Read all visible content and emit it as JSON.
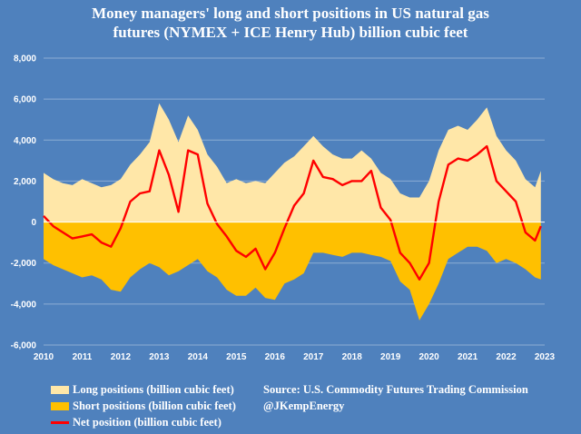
{
  "title_line1": "Money managers' long and short positions in US natural gas",
  "title_line2": "futures (NYMEX + ICE Henry Hub) billion cubic feet",
  "source_line1": "Source: U.S. Commodity Futures Trading Commission",
  "source_line2": "@JKempEnergy",
  "colors": {
    "background": "#4f81bd",
    "long": "#ffe7a8",
    "short": "#ffc000",
    "net": "#ff0000",
    "grid": "#ffffff"
  },
  "chart_data": {
    "type": "area",
    "title": "Money managers' long and short positions in US natural gas futures (NYMEX + ICE Henry Hub) billion cubic feet",
    "xlim": [
      2010,
      2023
    ],
    "ylim": [
      -6000,
      8000
    ],
    "yticks": [
      8000,
      6000,
      4000,
      2000,
      0,
      -2000,
      -4000,
      -6000
    ],
    "ytick_labels": [
      "8,000",
      "6,000",
      "4,000",
      "2,000",
      "0",
      "-2,000",
      "-4,000",
      "-6,000"
    ],
    "xtick_labels": [
      "2010",
      "2011",
      "2012",
      "2013",
      "2014",
      "2015",
      "2016",
      "2017",
      "2018",
      "2019",
      "2020",
      "2021",
      "2022",
      "2023"
    ],
    "legend_position": "bottom-left",
    "x": [
      2010.0,
      2010.25,
      2010.5,
      2010.75,
      2011.0,
      2011.25,
      2011.5,
      2011.75,
      2012.0,
      2012.25,
      2012.5,
      2012.75,
      2013.0,
      2013.25,
      2013.5,
      2013.75,
      2014.0,
      2014.25,
      2014.5,
      2014.75,
      2015.0,
      2015.25,
      2015.5,
      2015.75,
      2016.0,
      2016.25,
      2016.5,
      2016.75,
      2017.0,
      2017.25,
      2017.5,
      2017.75,
      2018.0,
      2018.25,
      2018.5,
      2018.75,
      2019.0,
      2019.25,
      2019.5,
      2019.75,
      2020.0,
      2020.25,
      2020.5,
      2020.75,
      2021.0,
      2021.25,
      2021.5,
      2021.75,
      2022.0,
      2022.25,
      2022.5,
      2022.75,
      2022.9
    ],
    "series": [
      {
        "name": "Long positions (billion cubic feet)",
        "values": [
          2400,
          2100,
          1900,
          1800,
          2100,
          1900,
          1700,
          1800,
          2100,
          2800,
          3300,
          3900,
          5800,
          5000,
          3900,
          5200,
          4500,
          3300,
          2700,
          1900,
          2100,
          1900,
          2000,
          1900,
          2400,
          2900,
          3200,
          3700,
          4200,
          3700,
          3300,
          3100,
          3100,
          3500,
          3100,
          2400,
          2100,
          1400,
          1200,
          1200,
          2000,
          3500,
          4500,
          4700,
          4500,
          5000,
          5600,
          4200,
          3500,
          3000,
          2100,
          1700,
          2500
        ]
      },
      {
        "name": "Short positions (billion cubic feet)",
        "values": [
          -1800,
          -2100,
          -2300,
          -2500,
          -2700,
          -2600,
          -2800,
          -3300,
          -3400,
          -2700,
          -2300,
          -2000,
          -2200,
          -2600,
          -2400,
          -2100,
          -1800,
          -2400,
          -2700,
          -3300,
          -3600,
          -3600,
          -3200,
          -3700,
          -3800,
          -3000,
          -2800,
          -2500,
          -1500,
          -1500,
          -1600,
          -1700,
          -1500,
          -1500,
          -1600,
          -1700,
          -1900,
          -2900,
          -3300,
          -4800,
          -4000,
          -3000,
          -1800,
          -1500,
          -1200,
          -1200,
          -1400,
          -2000,
          -1800,
          -2000,
          -2300,
          -2700,
          -2800
        ]
      },
      {
        "name": "Net position (billion cubic feet)",
        "values": [
          300,
          -200,
          -500,
          -800,
          -700,
          -600,
          -1000,
          -1200,
          -300,
          1000,
          1400,
          1500,
          3500,
          2300,
          500,
          3500,
          3300,
          900,
          -100,
          -700,
          -1400,
          -1700,
          -1300,
          -2300,
          -1500,
          -300,
          800,
          1400,
          3000,
          2200,
          2100,
          1800,
          2000,
          2000,
          2500,
          700,
          100,
          -1500,
          -2000,
          -2800,
          -2000,
          1000,
          2800,
          3100,
          3000,
          3300,
          3700,
          2000,
          1500,
          1000,
          -500,
          -900,
          -200
        ]
      }
    ]
  },
  "legend": [
    {
      "label": "Long positions (billion cubic feet)"
    },
    {
      "label": "Short positions (billion cubic feet)"
    },
    {
      "label": "Net position (billion cubic feet)"
    }
  ]
}
